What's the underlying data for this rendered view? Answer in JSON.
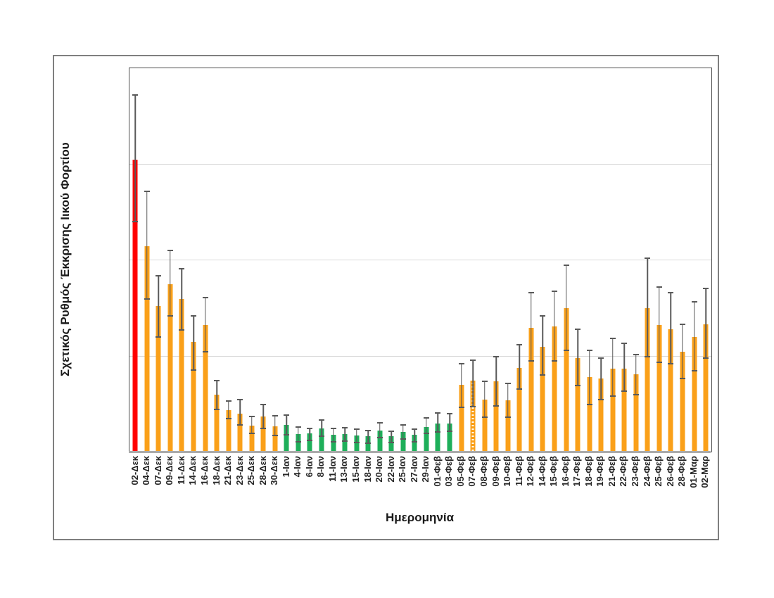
{
  "chart_data": {
    "type": "bar",
    "title": "",
    "xlabel": "Ημερομηνία",
    "ylabel": "Σχετικός Ρυθμός Έκκρισης Ιικού Φορτίου",
    "ylim": [
      0,
      80
    ],
    "yticks": [
      0,
      20,
      40,
      60,
      80
    ],
    "grid": "horizontal",
    "legend": "none",
    "error_bars": true,
    "categories": [
      "02-Δεκ",
      "04-Δεκ",
      "07-Δεκ",
      "09-Δεκ",
      "11-Δεκ",
      "14-Δεκ",
      "16-Δεκ",
      "18-Δεκ",
      "21-Δεκ",
      "23-Δεκ",
      "25-Δεκ",
      "28-Δεκ",
      "30-Δεκ",
      "1-Ιαν",
      "4-Ιαν",
      "6-Ιαν",
      "8-Ιαν",
      "11-Ιαν",
      "13-Ιαν",
      "15-Ιαν",
      "18-Ιαν",
      "20-Ιαν",
      "22-Ιαν",
      "25-Ιαν",
      "27-Ιαν",
      "29-Ιαν",
      "01-Φεβ",
      "03-Φεβ",
      "05-Φεβ",
      "07-Φεβ",
      "08-Φεβ",
      "09-Φεβ",
      "10-Φεβ",
      "11-Φεβ",
      "12-Φεβ",
      "14-Φεβ",
      "15-Φεβ",
      "16-Φεβ",
      "17-Φεβ",
      "18-Φεβ",
      "19-Φεβ",
      "21-Φεβ",
      "22-Φεβ",
      "23-Φεβ",
      "24-Φεβ",
      "25-Φεβ",
      "26-Φεβ",
      "28-Φεβ",
      "01-Μαρ",
      "02-Μαρ"
    ],
    "values": [
      61,
      43,
      30.5,
      35,
      32,
      23,
      26.5,
      12,
      8.8,
      8,
      5.5,
      7.5,
      5.4,
      5.7,
      3.8,
      4,
      5,
      3.7,
      3.8,
      3.5,
      3.4,
      4.6,
      3.4,
      4.2,
      3.7,
      5.3,
      6,
      6,
      14,
      15,
      11,
      14.8,
      10.9,
      17.6,
      26,
      22,
      26.2,
      30,
      19.7,
      15.7,
      15.4,
      17.5,
      17.5,
      16.2,
      30,
      26.5,
      25.7,
      20.9,
      24,
      26.7
    ],
    "error_low": [
      48,
      32,
      24,
      28.5,
      25.5,
      17.2,
      21,
      9,
      7,
      5.7,
      4,
      5,
      3.5,
      3.7,
      2.2,
      2.5,
      3.4,
      2.2,
      2.4,
      2.1,
      1.9,
      3.1,
      2.1,
      2.8,
      2.2,
      4,
      4.3,
      4.4,
      9.4,
      9.5,
      7.4,
      9.7,
      7.4,
      13.2,
      19,
      16.1,
      19,
      21.3,
      13.9,
      10,
      11,
      11.7,
      12.8,
      12,
      20,
      18.7,
      18.4,
      15.4,
      17,
      19.7
    ],
    "error_high": [
      74.5,
      54.3,
      36.8,
      42,
      38.2,
      28.5,
      32.2,
      15,
      10.7,
      11,
      7.5,
      10,
      7.6,
      7.8,
      5.3,
      5,
      6.8,
      5,
      5.1,
      4.8,
      4.6,
      6.2,
      4.4,
      5.7,
      4.8,
      7.2,
      8.2,
      8.1,
      18.5,
      19.2,
      14.8,
      20,
      14.4,
      22.4,
      33.2,
      28.4,
      33.5,
      39,
      25.7,
      21.2,
      19.7,
      23.8,
      22.7,
      20.4,
      40.5,
      34.5,
      33.2,
      26.7,
      31.3,
      34.1
    ],
    "bar_colors": [
      "red",
      "orange",
      "orange",
      "orange",
      "orange",
      "orange",
      "orange",
      "orange",
      "orange",
      "orange",
      "orange",
      "orange",
      "orange",
      "green",
      "green",
      "green",
      "green",
      "green",
      "green",
      "green",
      "green",
      "green",
      "green",
      "green",
      "green",
      "green",
      "green",
      "green",
      "orange",
      "orange-dashed",
      "orange",
      "orange",
      "orange",
      "orange",
      "orange",
      "orange",
      "orange",
      "orange",
      "orange",
      "orange",
      "orange",
      "orange",
      "orange",
      "orange",
      "orange",
      "orange",
      "orange",
      "orange",
      "orange",
      "orange"
    ],
    "colors": {
      "red": "#ff0000",
      "orange": "#faa019",
      "green": "#1eaf5a",
      "error_bar": "#595959",
      "gridline": "#d9d9d9",
      "x_axis_line": "#ababab",
      "plot_border": "#4d4d4d",
      "frame_border": "#7f7f7f"
    }
  }
}
